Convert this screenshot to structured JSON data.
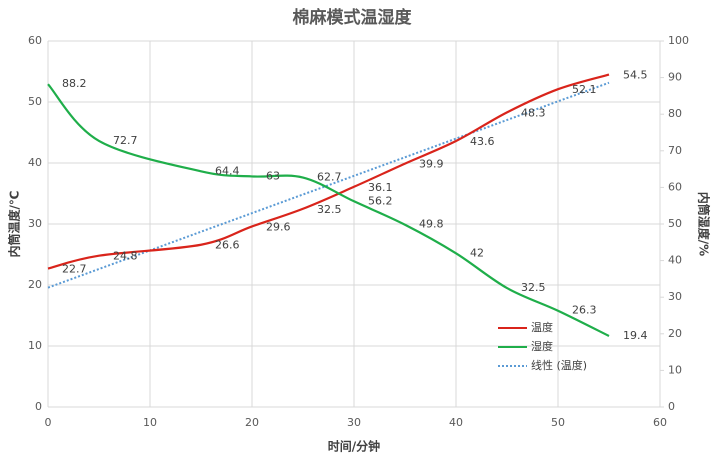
{
  "chart_data": {
    "type": "line",
    "title": "棉麻模式温湿度",
    "x_label": "时间/分钟",
    "y_label": "内筒温度/℃",
    "y2_label": "内筒湿度/%",
    "x": [
      0,
      5,
      15,
      20,
      25,
      30,
      35,
      40,
      45,
      50,
      55
    ],
    "series": [
      {
        "name": "温度",
        "color": "#d9241b",
        "values": [
          22.7,
          24.8,
          26.6,
          29.6,
          32.5,
          36.1,
          39.9,
          43.6,
          48.3,
          52.1,
          54.5
        ]
      },
      {
        "name": "湿度",
        "color": "#1fae4a",
        "axis": "y2",
        "values": [
          88.2,
          72.7,
          64.4,
          63,
          62.7,
          56.2,
          49.8,
          42,
          32.5,
          26.3,
          19.4
        ]
      }
    ],
    "trendline": {
      "name": "线性 (温度)",
      "color": "#5b9bd5",
      "series": 0
    },
    "xlim": [
      0,
      60
    ],
    "xticks": [
      0,
      10,
      20,
      30,
      40,
      50,
      60
    ],
    "ylim": [
      0,
      60
    ],
    "yticks": [
      0,
      10,
      20,
      30,
      40,
      50,
      60
    ],
    "y2lim": [
      0,
      100
    ],
    "y2ticks": [
      0,
      10,
      20,
      30,
      40,
      50,
      60,
      70,
      80,
      90,
      100
    ],
    "grid": true,
    "legend": "bottom-right"
  }
}
